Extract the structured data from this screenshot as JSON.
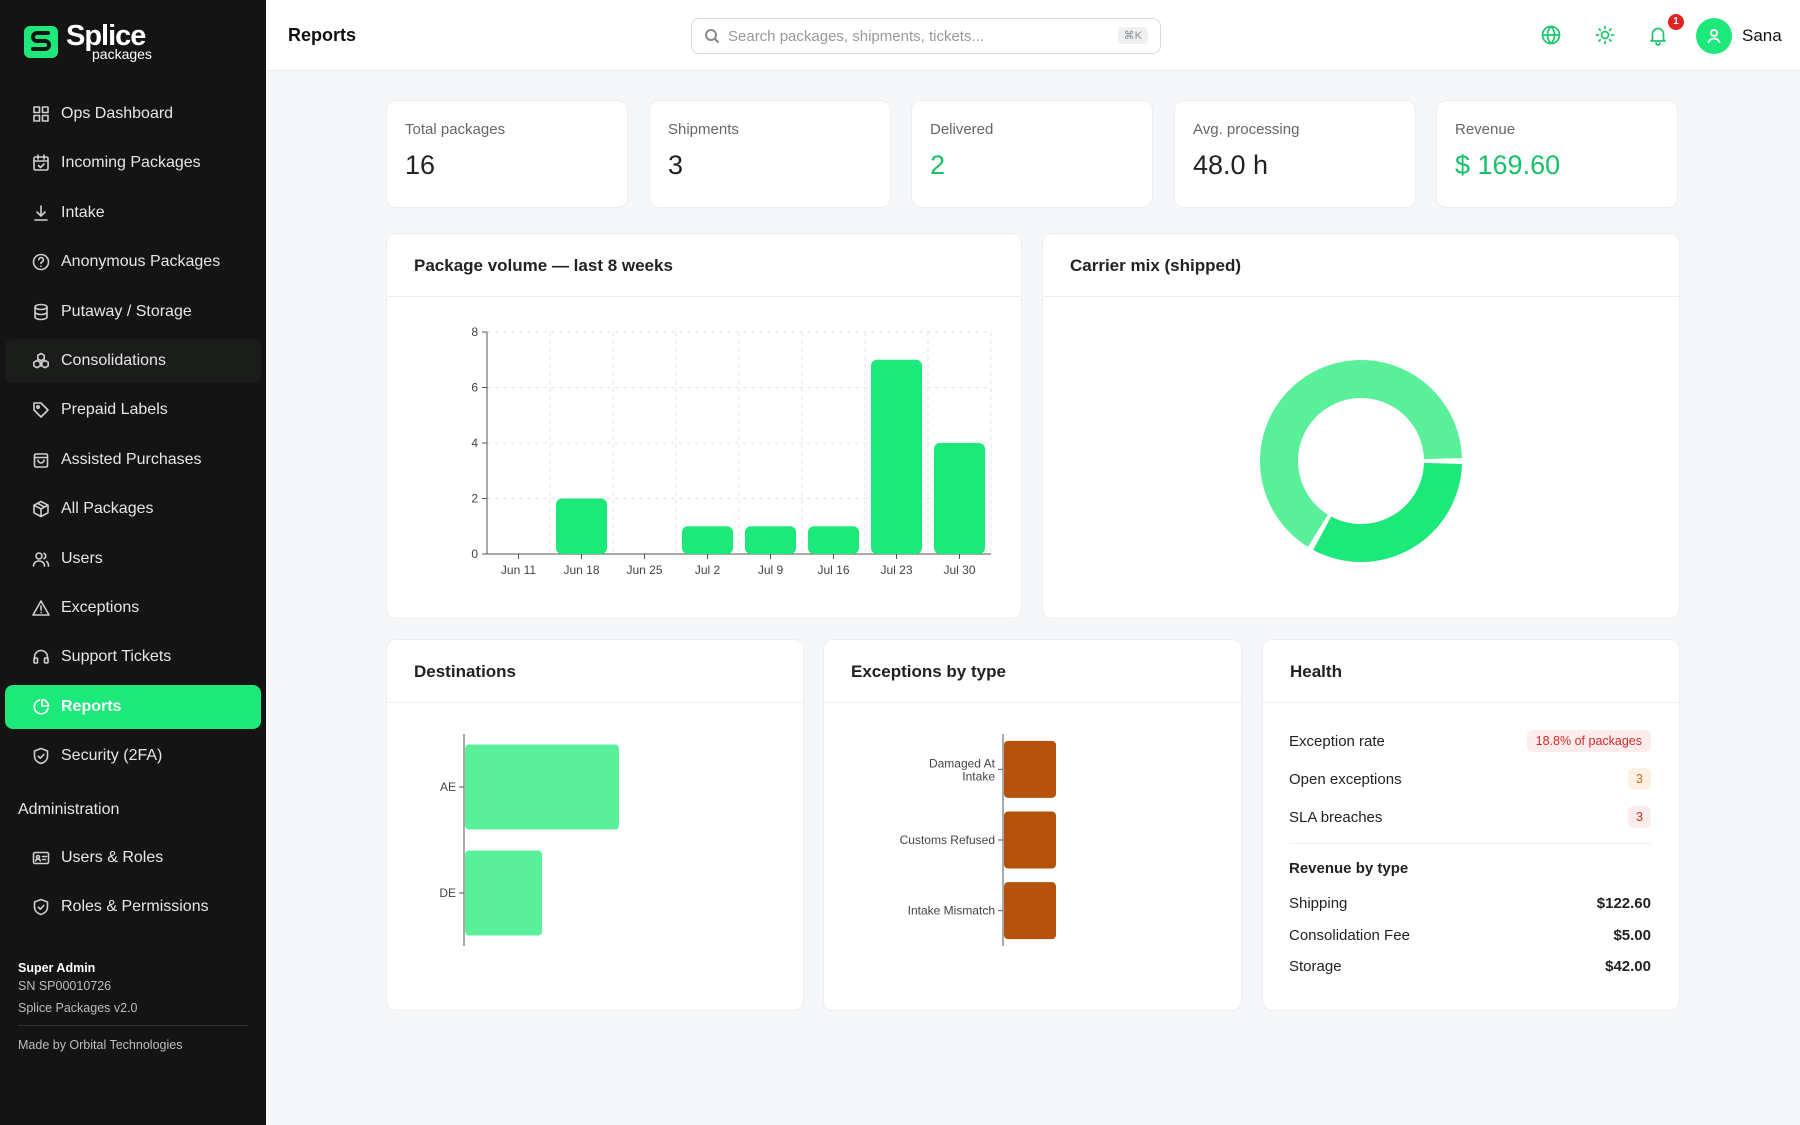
{
  "brand": {
    "name": "Splice",
    "sub": "packages"
  },
  "sidebar": {
    "items": [
      {
        "label": "Ops Dashboard",
        "icon": "grid-icon"
      },
      {
        "label": "Incoming Packages",
        "icon": "calendar-check-icon"
      },
      {
        "label": "Intake",
        "icon": "download-icon"
      },
      {
        "label": "Anonymous Packages",
        "icon": "question-circle-icon"
      },
      {
        "label": "Putaway / Storage",
        "icon": "database-icon"
      },
      {
        "label": "Consolidations",
        "icon": "boxes-icon"
      },
      {
        "label": "Prepaid Labels",
        "icon": "tag-icon"
      },
      {
        "label": "Assisted Purchases",
        "icon": "shopping-bag-icon"
      },
      {
        "label": "All Packages",
        "icon": "package-icon"
      },
      {
        "label": "Users",
        "icon": "users-icon"
      },
      {
        "label": "Exceptions",
        "icon": "warning-triangle-icon"
      },
      {
        "label": "Support Tickets",
        "icon": "headset-icon"
      },
      {
        "label": "Reports",
        "icon": "pie-chart-icon"
      },
      {
        "label": "Security (2FA)",
        "icon": "shield-check-icon"
      }
    ],
    "admin_heading": "Administration",
    "admin_items": [
      {
        "label": "Users & Roles",
        "icon": "id-card-icon"
      },
      {
        "label": "Roles & Permissions",
        "icon": "shield-icon"
      }
    ],
    "footer": {
      "role": "Super Admin",
      "serial": "SN SP00010726",
      "version": "Splice Packages v2.0",
      "credit": "Made by Orbital Technologies"
    }
  },
  "header": {
    "title": "Reports",
    "search_placeholder": "Search packages, shipments, tickets...",
    "shortcut": "⌘K",
    "notification_count": "1",
    "username": "Sana"
  },
  "stats": [
    {
      "label": "Total packages",
      "value": "16"
    },
    {
      "label": "Shipments",
      "value": "3"
    },
    {
      "label": "Delivered",
      "value": "2"
    },
    {
      "label": "Avg. processing",
      "value": "48.0 h"
    },
    {
      "label": "Revenue",
      "value": "$ 169.60"
    }
  ],
  "panels": {
    "volume_title": "Package volume — last 8 weeks",
    "carrier_title": "Carrier mix (shipped)",
    "destinations_title": "Destinations",
    "exceptions_title": "Exceptions by type",
    "health_title": "Health"
  },
  "health": {
    "rows": [
      {
        "label": "Exception rate",
        "value": "18.8% of packages"
      },
      {
        "label": "Open exceptions",
        "value": "3"
      },
      {
        "label": "SLA breaches",
        "value": "3"
      }
    ],
    "revenue_heading": "Revenue by type",
    "revenue": [
      {
        "label": "Shipping",
        "value": "$122.60"
      },
      {
        "label": "Consolidation Fee",
        "value": "$5.00"
      },
      {
        "label": "Storage",
        "value": "$42.00"
      }
    ]
  },
  "colors": {
    "accent": "#1de97a",
    "accent_light": "#5af09a",
    "exception_bar": "#b5530c"
  },
  "chart_data": [
    {
      "type": "bar",
      "categories": [
        "Jun 11",
        "Jun 18",
        "Jun 25",
        "Jul 2",
        "Jul 9",
        "Jul 16",
        "Jul 23",
        "Jul 30"
      ],
      "values": [
        0,
        2,
        0,
        1,
        1,
        1,
        7,
        4
      ],
      "ylim": [
        0,
        8
      ],
      "yticks": [
        0,
        2,
        4,
        6,
        8
      ],
      "grid": true
    },
    {
      "type": "pie",
      "style": "donut",
      "slices": [
        {
          "value": 1,
          "color": "#1de97a"
        },
        {
          "value": 2,
          "color": "#5af09a"
        }
      ]
    },
    {
      "type": "bar",
      "orientation": "horizontal",
      "categories": [
        "AE",
        "DE"
      ],
      "values": [
        2,
        1
      ]
    },
    {
      "type": "bar",
      "orientation": "horizontal",
      "categories": [
        "Damaged At Intake",
        "Customs Refused",
        "Intake Mismatch"
      ],
      "values": [
        1,
        1,
        1
      ]
    }
  ]
}
